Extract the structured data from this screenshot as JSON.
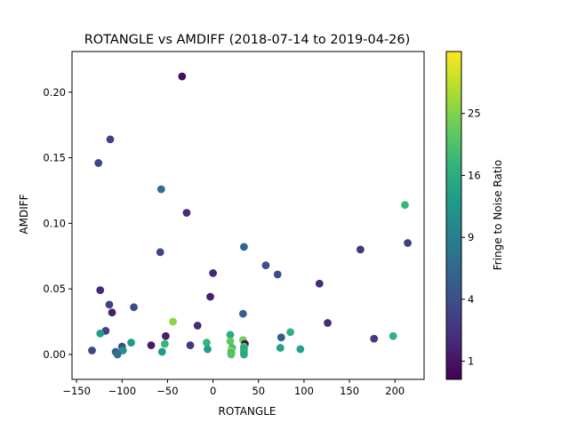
{
  "chart_data": {
    "type": "scatter",
    "title": "ROTANGLE vs AMDIFF (2018-07-14 to 2019-04-26)",
    "xlabel": "ROTANGLE",
    "ylabel": "AMDIFF",
    "xlim": [
      -155,
      232
    ],
    "ylim": [
      -0.019,
      0.231
    ],
    "xticks": [
      -150,
      -100,
      -50,
      0,
      50,
      100,
      150,
      200
    ],
    "xtick_labels": [
      "−150",
      "−100",
      "−50",
      "0",
      "50",
      "100",
      "150",
      "200"
    ],
    "yticks": [
      0.0,
      0.05,
      0.1,
      0.15,
      0.2
    ],
    "ytick_labels": [
      "0.00",
      "0.05",
      "0.10",
      "0.15",
      "0.20"
    ],
    "grid": false,
    "colormap": "viridis",
    "colorbar": {
      "label": "Fringe to Noise Ratio",
      "scale": "sqrt",
      "range": [
        0.5,
        36
      ],
      "ticks": [
        1,
        4,
        9,
        16,
        25
      ],
      "tick_labels": [
        "1",
        "4",
        "9",
        "16",
        "25"
      ]
    },
    "points": [
      {
        "x": -34,
        "y": 0.212,
        "c": 0.8
      },
      {
        "x": -113,
        "y": 0.164,
        "c": 3.0
      },
      {
        "x": -126,
        "y": 0.146,
        "c": 3.3
      },
      {
        "x": -57,
        "y": 0.126,
        "c": 7.0
      },
      {
        "x": 211,
        "y": 0.114,
        "c": 18.0
      },
      {
        "x": -29,
        "y": 0.108,
        "c": 1.8
      },
      {
        "x": 214,
        "y": 0.085,
        "c": 3.0
      },
      {
        "x": 34,
        "y": 0.082,
        "c": 6.0
      },
      {
        "x": 162,
        "y": 0.08,
        "c": 2.3
      },
      {
        "x": -58,
        "y": 0.078,
        "c": 3.3
      },
      {
        "x": 58,
        "y": 0.068,
        "c": 4.0
      },
      {
        "x": 0,
        "y": 0.062,
        "c": 1.6
      },
      {
        "x": 71,
        "y": 0.061,
        "c": 4.0
      },
      {
        "x": 117,
        "y": 0.054,
        "c": 1.8
      },
      {
        "x": -124,
        "y": 0.049,
        "c": 1.8
      },
      {
        "x": -3,
        "y": 0.044,
        "c": 1.4
      },
      {
        "x": -114,
        "y": 0.038,
        "c": 3.0
      },
      {
        "x": -87,
        "y": 0.036,
        "c": 3.6
      },
      {
        "x": -111,
        "y": 0.032,
        "c": 1.4
      },
      {
        "x": 33,
        "y": 0.031,
        "c": 5.5
      },
      {
        "x": -44,
        "y": 0.025,
        "c": 26.0
      },
      {
        "x": 126,
        "y": 0.024,
        "c": 1.9
      },
      {
        "x": -17,
        "y": 0.022,
        "c": 1.8
      },
      {
        "x": -118,
        "y": 0.018,
        "c": 3.0
      },
      {
        "x": 85,
        "y": 0.017,
        "c": 16.5
      },
      {
        "x": -124,
        "y": 0.016,
        "c": 13.0
      },
      {
        "x": 19,
        "y": 0.015,
        "c": 16.0
      },
      {
        "x": 198,
        "y": 0.014,
        "c": 17.0
      },
      {
        "x": -52,
        "y": 0.014,
        "c": 1.4
      },
      {
        "x": 75,
        "y": 0.013,
        "c": 5.0
      },
      {
        "x": 177,
        "y": 0.012,
        "c": 2.5
      },
      {
        "x": 33,
        "y": 0.011,
        "c": 24.0
      },
      {
        "x": 19,
        "y": 0.01,
        "c": 22.0
      },
      {
        "x": -90,
        "y": 0.009,
        "c": 12.5
      },
      {
        "x": -7,
        "y": 0.009,
        "c": 18.0
      },
      {
        "x": 35,
        "y": 0.008,
        "c": 0.8
      },
      {
        "x": -53,
        "y": 0.008,
        "c": 18.0
      },
      {
        "x": -25,
        "y": 0.007,
        "c": 2.6
      },
      {
        "x": -68,
        "y": 0.007,
        "c": 1.2
      },
      {
        "x": 34,
        "y": 0.006,
        "c": 19.0
      },
      {
        "x": -100,
        "y": 0.006,
        "c": 3.6
      },
      {
        "x": 74,
        "y": 0.005,
        "c": 14.0
      },
      {
        "x": 21,
        "y": 0.005,
        "c": 19.0
      },
      {
        "x": 96,
        "y": 0.004,
        "c": 14.0
      },
      {
        "x": -6,
        "y": 0.004,
        "c": 13.0
      },
      {
        "x": 34,
        "y": 0.004,
        "c": 15.0
      },
      {
        "x": -99,
        "y": 0.003,
        "c": 11.5
      },
      {
        "x": -133,
        "y": 0.003,
        "c": 3.3
      },
      {
        "x": 20,
        "y": 0.003,
        "c": 25.0
      },
      {
        "x": -56,
        "y": 0.002,
        "c": 13.0
      },
      {
        "x": -107,
        "y": 0.002,
        "c": 5.0
      },
      {
        "x": 34,
        "y": 0.002,
        "c": 17.0
      },
      {
        "x": 20,
        "y": 0.001,
        "c": 18.0
      },
      {
        "x": -105,
        "y": 0.0,
        "c": 7.0
      },
      {
        "x": 34,
        "y": 0.0,
        "c": 15.5
      },
      {
        "x": 20,
        "y": 0.0,
        "c": 21.0
      }
    ]
  }
}
